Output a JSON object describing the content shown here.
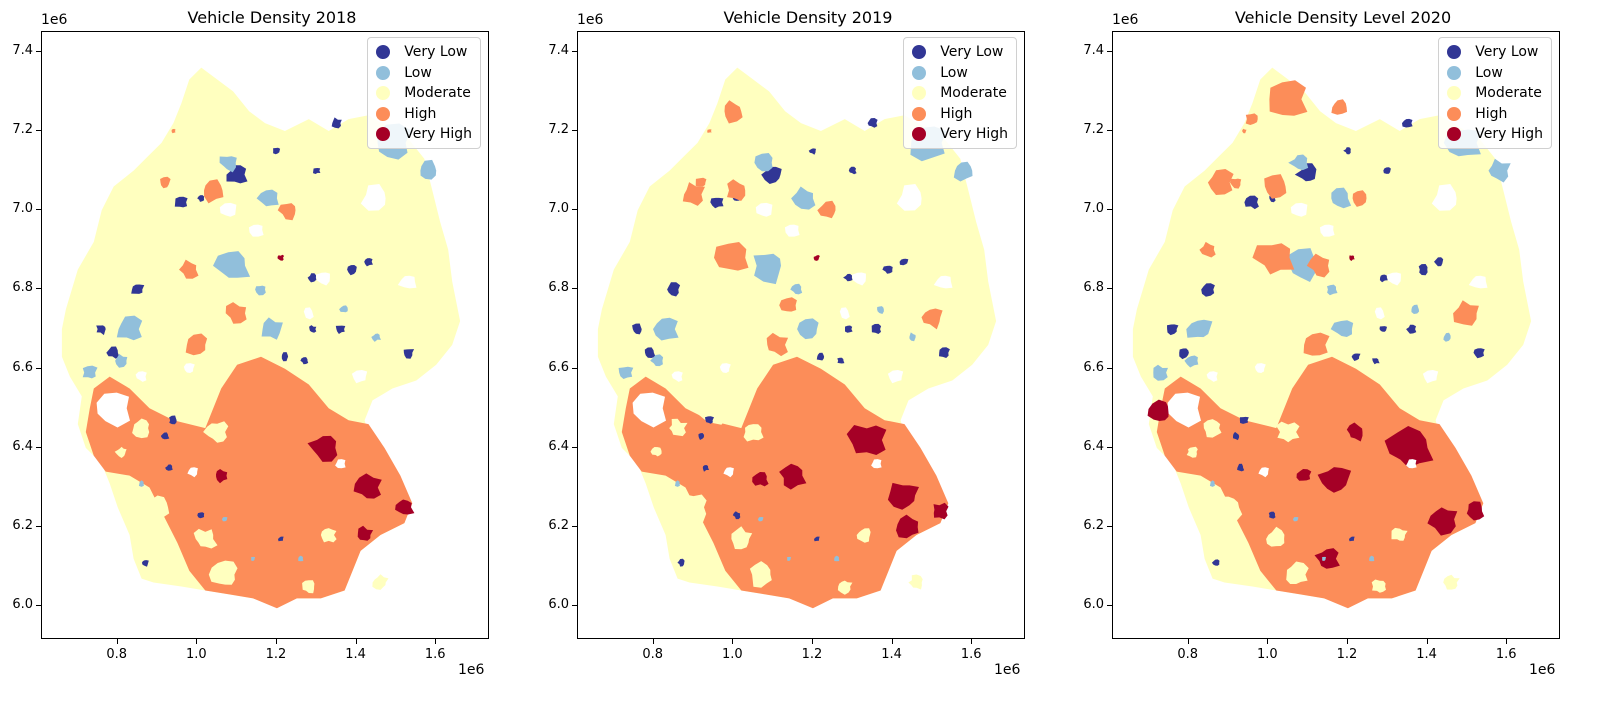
{
  "categories": [
    {
      "label": "Very Low",
      "color": "#313695"
    },
    {
      "label": "Low",
      "color": "#91bfdb"
    },
    {
      "label": "Moderate",
      "color": "#ffffbf"
    },
    {
      "label": "High",
      "color": "#fc8d59"
    },
    {
      "label": "Very High",
      "color": "#a50026"
    }
  ],
  "axis_exponent": "1e6",
  "yticks": [
    "6.0",
    "6.2",
    "6.4",
    "6.6",
    "6.8",
    "7.0",
    "7.2",
    "7.4"
  ],
  "xticks": [
    "0.8",
    "1.0",
    "1.2",
    "1.4",
    "1.6"
  ],
  "chart_data": [
    {
      "type": "map",
      "title": "Vehicle Density 2018",
      "xlim": [
        0.61,
        1.73
      ],
      "ylim": [
        5.92,
        7.45
      ],
      "legend_position": "top-right",
      "grid": false,
      "dominant": {
        "north": "Moderate",
        "south": "High"
      }
    },
    {
      "type": "map",
      "title": "Vehicle Density 2019",
      "xlim": [
        0.61,
        1.73
      ],
      "ylim": [
        5.92,
        7.45
      ],
      "legend_position": "top-right",
      "grid": false,
      "dominant": {
        "north": "Moderate",
        "south": "High"
      }
    },
    {
      "type": "map",
      "title": "Vehicle Density Level 2020",
      "xlim": [
        0.61,
        1.73
      ],
      "ylim": [
        5.92,
        7.45
      ],
      "legend_position": "top-right",
      "grid": false,
      "dominant": {
        "north": "Moderate",
        "south": "High"
      }
    }
  ]
}
